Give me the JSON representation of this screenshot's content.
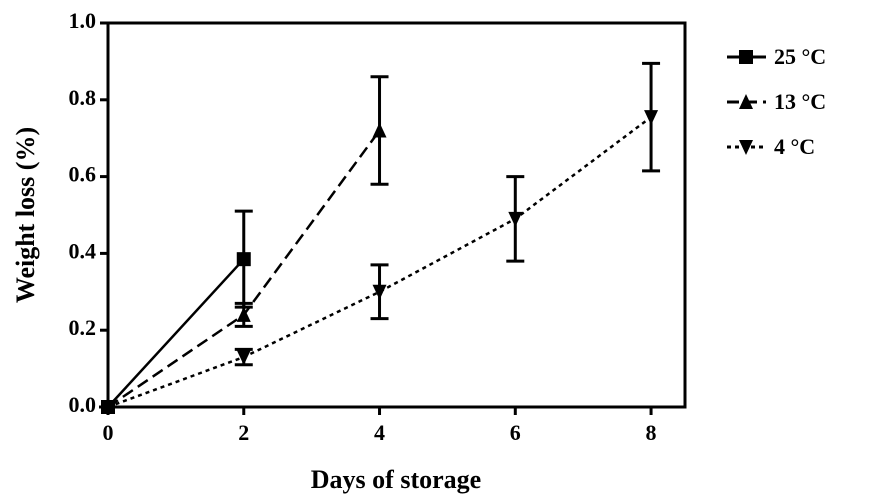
{
  "chart_data": {
    "type": "line",
    "xlabel": "Days of storage",
    "ylabel": "Weight loss (%)",
    "xlim": [
      0,
      8.5
    ],
    "xticks": [
      0,
      2,
      4,
      6,
      8
    ],
    "ylim": [
      0,
      1
    ],
    "yticks": [
      {
        "value": 0,
        "label": "0.0"
      },
      0.2,
      0.4,
      0.6,
      0.8,
      {
        "value": 1,
        "label": "1.0"
      }
    ],
    "series": [
      {
        "name": "25 °C",
        "color": "#000000",
        "dash": "solid",
        "marker": "square",
        "x": [
          0,
          2
        ],
        "values": [
          0,
          0.385
        ],
        "errors": [
          0,
          0.125
        ]
      },
      {
        "name": "13 °C",
        "color": "#000000",
        "dash": "dashed",
        "marker": "triangle-up",
        "x": [
          0,
          2,
          4
        ],
        "values": [
          0,
          0.24,
          0.72
        ],
        "errors": [
          0,
          0.03,
          0.14
        ]
      },
      {
        "name": "4 °C",
        "color": "#000000",
        "dash": "dotted",
        "marker": "triangle-down",
        "x": [
          0,
          2,
          4,
          6,
          8
        ],
        "values": [
          0,
          0.13,
          0.3,
          0.49,
          0.755
        ],
        "errors": [
          0,
          0.02,
          0.07,
          0.11,
          0.14
        ]
      }
    ]
  }
}
